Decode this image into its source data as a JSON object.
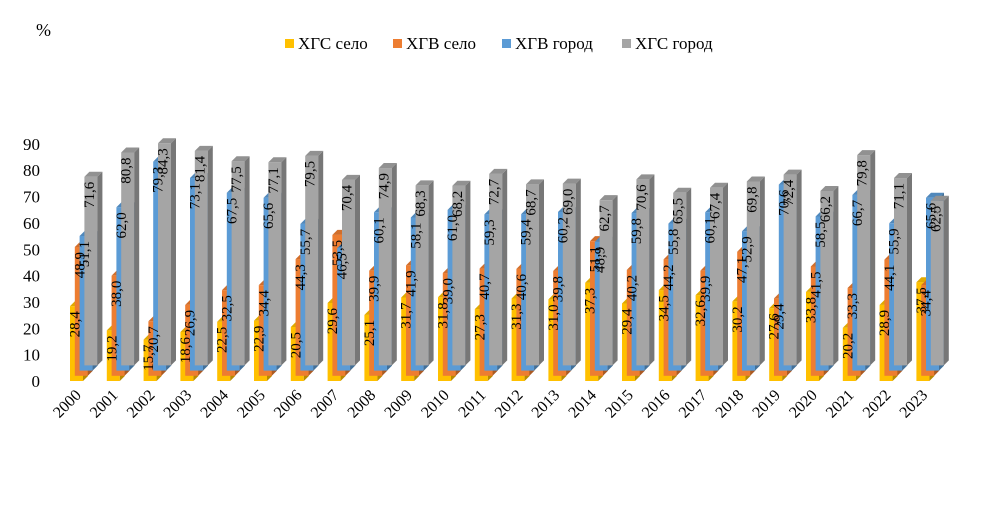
{
  "chart_data": {
    "type": "bar",
    "unit_label": "%",
    "categories": [
      "2000",
      "2001",
      "2002",
      "2003",
      "2004",
      "2005",
      "2006",
      "2007",
      "2008",
      "2009",
      "2010",
      "2011",
      "2012",
      "2013",
      "2014",
      "2015",
      "2016",
      "2017",
      "2018",
      "2019",
      "2020",
      "2021",
      "2022",
      "2023"
    ],
    "series": [
      {
        "name": "ХГС село",
        "color": "#FFC000",
        "values": [
          28.4,
          19.2,
          15.7,
          18.6,
          22.5,
          22.9,
          20.5,
          29.6,
          25.1,
          31.7,
          31.8,
          27.3,
          31.3,
          31.0,
          37.3,
          29.4,
          34.5,
          32.6,
          30.2,
          27.6,
          33.8,
          20.2,
          28.9,
          37.5
        ],
        "labels": [
          "28,4",
          "19,2",
          "15,7",
          "18,6",
          "22,5",
          "22,9",
          "20,5",
          "29,6",
          "25,1",
          "31,7",
          "31,8",
          "27,3",
          "31,3",
          "31,0",
          "37,3",
          "29,4",
          "34,5",
          "32,6",
          "30,2",
          "27,6",
          "33,8",
          "20,2",
          "28,9",
          "37,5"
        ]
      },
      {
        "name": "ХГВ село",
        "color": "#ED7D31",
        "values": [
          48.9,
          38.0,
          20.7,
          26.9,
          32.5,
          34.4,
          44.3,
          53.5,
          39.9,
          41.9,
          39.0,
          40.7,
          40.6,
          39.8,
          51.1,
          40.2,
          44.2,
          39.9,
          47.1,
          29.4,
          41.5,
          33.3,
          44.1,
          34.4
        ],
        "labels": [
          "48,9",
          "38,0",
          "20,7",
          "26,9",
          "32,5",
          "34,4",
          "44,3",
          "53,5",
          "39,9",
          "41,9",
          "39,0",
          "40,7",
          "40,6",
          "39,8",
          "51,1",
          "40,2",
          "44,2",
          "39,9",
          "47,1",
          "29,4",
          "41,5",
          "33,3",
          "44,1",
          "34,4"
        ]
      },
      {
        "name": "ХГВ город",
        "color": "#5B9BD5",
        "values": [
          51.1,
          62.0,
          79.3,
          73.1,
          67.5,
          65.6,
          55.7,
          46.5,
          60.1,
          58.1,
          61.0,
          59.3,
          59.4,
          60.2,
          48.9,
          59.8,
          55.8,
          60.1,
          52.9,
          70.6,
          58.5,
          66.7,
          55.9,
          65.6
        ],
        "labels": [
          "51,1",
          "62,0",
          "79,3",
          "73,1",
          "67,5",
          "65,6",
          "55,7",
          "46,5",
          "60,1",
          "58,1",
          "61,0",
          "59,3",
          "59,4",
          "60,2",
          "48,9",
          "59,8",
          "55,8",
          "60,1",
          "52,9",
          "70,6",
          "58,5",
          "66,7",
          "55,9",
          "65,6"
        ]
      },
      {
        "name": "ХГС город",
        "color": "#A5A5A5",
        "values": [
          71.6,
          80.8,
          84.3,
          81.4,
          77.5,
          77.1,
          79.5,
          70.4,
          74.9,
          68.3,
          68.2,
          72.7,
          68.7,
          69.0,
          62.7,
          70.6,
          65.5,
          67.4,
          69.8,
          72.4,
          66.2,
          79.8,
          71.1,
          62.5
        ],
        "labels": [
          "71,6",
          "80,8",
          "84,3",
          "81,4",
          "77,5",
          "77,1",
          "79,5",
          "70,4",
          "74,9",
          "68,3",
          "68,2",
          "72,7",
          "68,7",
          "69,0",
          "62,7",
          "70,6",
          "65,5",
          "67,4",
          "69,8",
          "72,4",
          "66,2",
          "79,8",
          "71,1",
          "62,5"
        ]
      }
    ],
    "y_ticks": [
      "0",
      "10",
      "20",
      "30",
      "40",
      "50",
      "60",
      "70",
      "80",
      "90"
    ],
    "ylim": [
      0,
      90
    ],
    "legend_position": "top",
    "grid": false
  }
}
